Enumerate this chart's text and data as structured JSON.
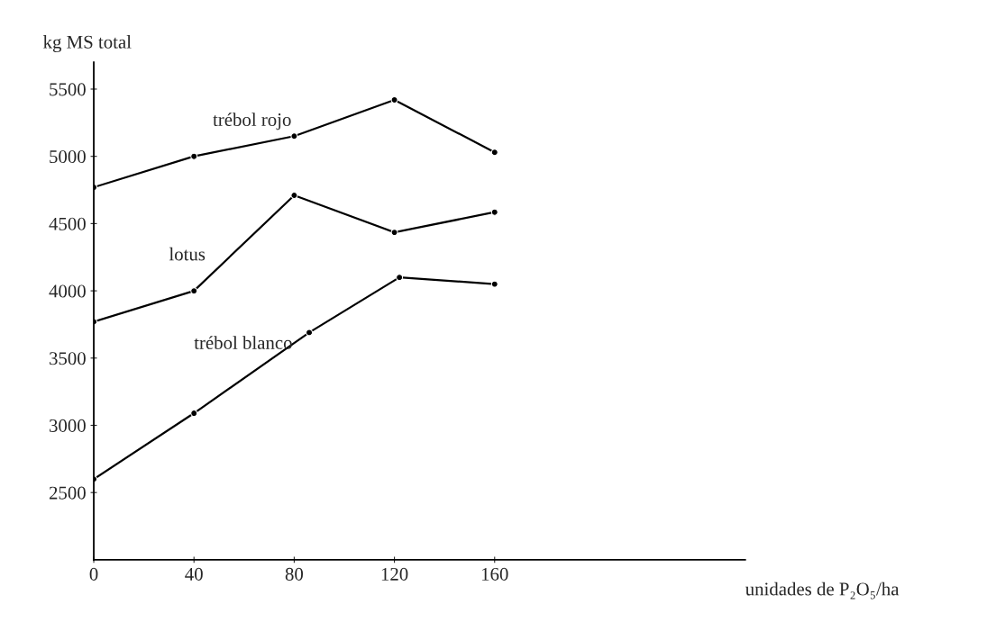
{
  "chart_data": {
    "type": "line",
    "ylabel": "kg MS total",
    "xlabel": "unidades de P₂O₅/ha",
    "x": [
      0,
      40,
      80,
      120,
      160
    ],
    "series": [
      {
        "name": "trébol rojo",
        "color": "#000000",
        "values": [
          4770,
          5000,
          5150,
          5420,
          5030
        ]
      },
      {
        "name": "lotus",
        "color": "#000000",
        "values": [
          3770,
          4000,
          4710,
          4435,
          4585
        ]
      },
      {
        "name": "trébol blanco",
        "color": "#000000",
        "x": [
          0,
          40,
          86,
          122,
          160
        ],
        "values": [
          2600,
          3090,
          3690,
          4100,
          4050
        ]
      }
    ],
    "xlim": [
      0,
      260
    ],
    "ylim": [
      2000,
      5700
    ],
    "xticks": [
      0,
      40,
      80,
      120,
      160
    ],
    "yticks": [
      2500,
      3000,
      3500,
      4000,
      4500,
      5000,
      5500
    ],
    "marker": "circle",
    "line_style": "solid",
    "grid": false,
    "legend": false
  }
}
